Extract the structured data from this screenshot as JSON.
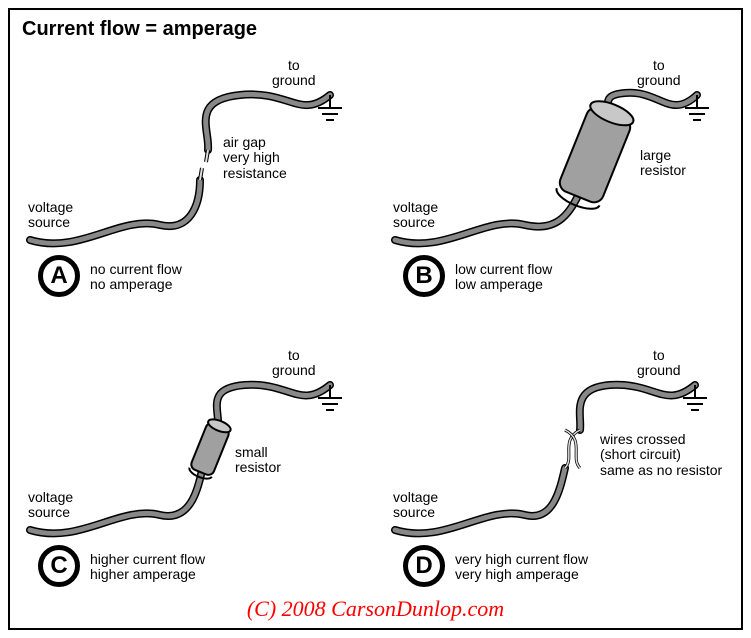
{
  "title": "Current flow = amperage",
  "credit": "(C) 2008 CarsonDunlop.com",
  "common": {
    "voltage_source_label": "voltage\nsource",
    "to_ground_label": "to\nground",
    "wire_stroke": "#000000",
    "wire_fill": "#888888",
    "wire_outer_width": 8,
    "wire_inner_width": 5,
    "ground_stroke": "#000000",
    "title_fontsize": 20,
    "label_fontsize": 14,
    "badge_border_width": 5,
    "badge_diameter": 42,
    "credit_color": "#ff0000",
    "credit_fontsize": 22,
    "background_color": "#ffffff"
  },
  "panels": {
    "A": {
      "letter": "A",
      "element_label": "air gap\nvery high\nresistance",
      "caption": "no current flow\nno amperage",
      "element_type": "gap"
    },
    "B": {
      "letter": "B",
      "element_label": "large\nresistor",
      "caption": "low current flow\nlow amperage",
      "element_type": "large_resistor",
      "resistor_w": 46,
      "resistor_h": 90,
      "resistor_fill": "#a0a0a0",
      "resistor_stroke": "#000000"
    },
    "C": {
      "letter": "C",
      "element_label": "small\nresistor",
      "caption": "higher current flow\nhigher amperage",
      "element_type": "small_resistor",
      "resistor_w": 24,
      "resistor_h": 50,
      "resistor_fill": "#a0a0a0",
      "resistor_stroke": "#000000"
    },
    "D": {
      "letter": "D",
      "element_label": "wires crossed\n(short circuit)\nsame as no resistor",
      "caption": "very high current flow\nvery high  amperage",
      "element_type": "crossed"
    }
  }
}
